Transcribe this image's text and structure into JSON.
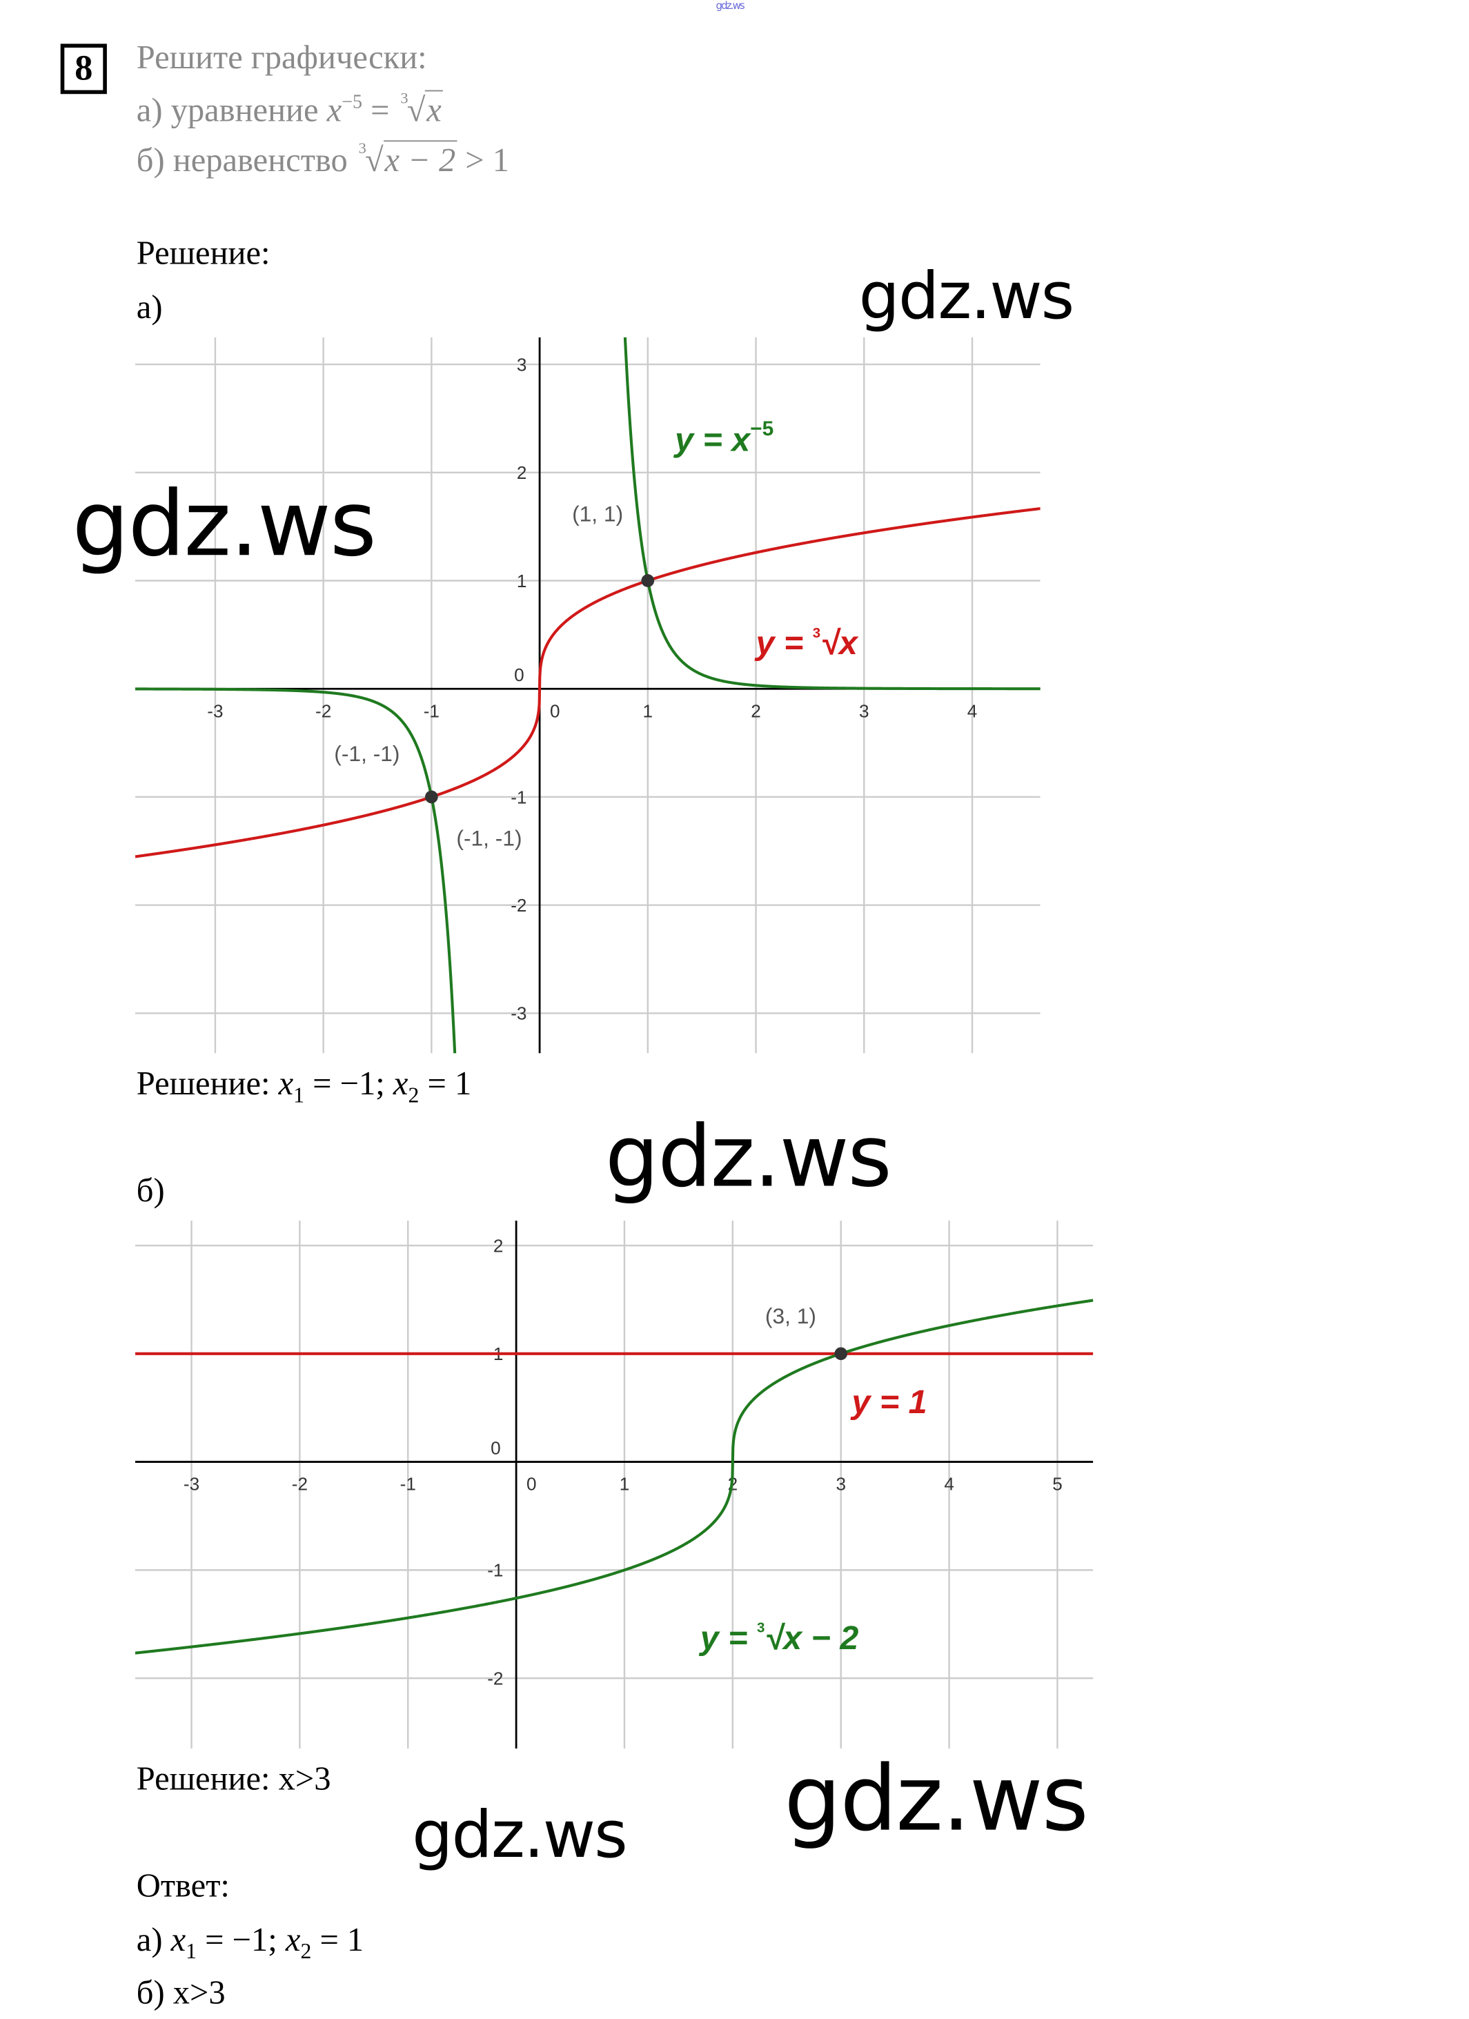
{
  "header_watermark": "gdz.ws",
  "task": {
    "number": "8",
    "title": "Решите графически:",
    "part_a": {
      "prefix": "а) уравнение ",
      "var": "x",
      "exp": "−5",
      "eq": " = ",
      "root_index": "3",
      "root_body": "x"
    },
    "part_b": {
      "prefix": "б) неравенство ",
      "root_index": "3",
      "root_body": "x − 2",
      "rest": " > 1"
    }
  },
  "solution": {
    "heading": "Решение:",
    "a_label": "а)",
    "a_result": {
      "prefix": "Решение: ",
      "x1": "x",
      "s1": "1",
      "v1": " = −1; ",
      "x2": "x",
      "s2": "2",
      "v2": " = 1"
    },
    "b_label": "б)",
    "b_result": "Решение: x>3"
  },
  "answer": {
    "heading": "Ответ:",
    "a": {
      "prefix": "а) ",
      "x1": "x",
      "s1": "1",
      "v1": " = −1; ",
      "x2": "x",
      "s2": "2",
      "v2": " = 1"
    },
    "b": "б) x>3"
  },
  "watermarks": [
    "gdz.ws",
    "gdz.ws",
    "gdz.ws",
    "gdz.ws",
    "gdz.ws"
  ],
  "colors": {
    "green": "#1f7a1f",
    "red": "#d01919",
    "grid": "#cccccc",
    "point": "#333333",
    "text_gray": "#8a8a8a"
  },
  "chart_data": [
    {
      "type": "line",
      "xlim": [
        -3.74,
        4.63
      ],
      "ylim": [
        -3.37,
        3.25
      ],
      "grid": true,
      "xticks": [
        -3,
        -2,
        -1,
        0,
        1,
        2,
        3,
        4
      ],
      "yticks": [
        -3,
        -2,
        -1,
        1,
        2,
        3
      ],
      "origin_label": "0",
      "series": [
        {
          "name": "y = x^(−5)",
          "label": {
            "y": "y",
            "eq": " = ",
            "x": "x",
            "exp": "−5"
          },
          "function": "x^-5",
          "color": "#1f7a1f"
        },
        {
          "name": "y = ∛x",
          "label": {
            "y": "y",
            "eq": " = ",
            "idx": "3",
            "x": "x"
          },
          "function": "cbrt(x)",
          "color": "#d01919"
        }
      ],
      "points": [
        {
          "x": 1,
          "y": 1,
          "label": "(1, 1)"
        },
        {
          "x": -1,
          "y": -1,
          "label": "(-1, -1)",
          "label2": "(-1, -1)"
        }
      ]
    },
    {
      "type": "line",
      "xlim": [
        -3.52,
        5.33
      ],
      "ylim": [
        -2.65,
        2.23
      ],
      "grid": true,
      "xticks": [
        -3,
        -2,
        -1,
        0,
        1,
        2,
        3,
        4,
        5
      ],
      "yticks": [
        -2,
        -1,
        1,
        2
      ],
      "origin_label": "0",
      "series": [
        {
          "name": "y = 1",
          "label": {
            "y": "y",
            "eq": " = ",
            "v": "1"
          },
          "function": "1",
          "color": "#d01919"
        },
        {
          "name": "y = ∛(x − 2)",
          "label": {
            "y": "y",
            "eq": " = ",
            "idx": "3",
            "x": "x − 2"
          },
          "function": "cbrt(x-2)",
          "color": "#1f7a1f"
        }
      ],
      "points": [
        {
          "x": 3,
          "y": 1,
          "label": "(3, 1)"
        }
      ]
    }
  ]
}
